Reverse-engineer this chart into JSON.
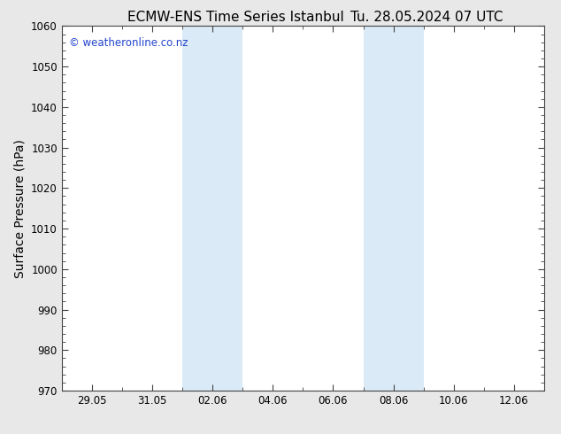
{
  "title_left": "ECMW-ENS Time Series Istanbul",
  "title_right": "Tu. 28.05.2024 07 UTC",
  "ylabel": "Surface Pressure (hPa)",
  "ylim": [
    970,
    1060
  ],
  "yticks": [
    970,
    980,
    990,
    1000,
    1010,
    1020,
    1030,
    1040,
    1050,
    1060
  ],
  "x_min": 0,
  "x_max": 16,
  "xtick_labels": [
    "29.05",
    "31.05",
    "02.06",
    "04.06",
    "06.06",
    "08.06",
    "10.06",
    "12.06"
  ],
  "xtick_positions": [
    1,
    3,
    5,
    7,
    9,
    11,
    13,
    15
  ],
  "fig_bg_color": "#e8e8e8",
  "plot_bg_color": "#ffffff",
  "shaded_bands": [
    {
      "x_start": 4.0,
      "x_end": 6.0,
      "color": "#daeaf7"
    },
    {
      "x_start": 10.0,
      "x_end": 12.0,
      "color": "#daeaf7"
    }
  ],
  "watermark_text": "© weatheronline.co.nz",
  "watermark_color": "#2244cc",
  "spine_color": "#444444",
  "title_fontsize": 11,
  "tick_fontsize": 8.5,
  "ylabel_fontsize": 10
}
